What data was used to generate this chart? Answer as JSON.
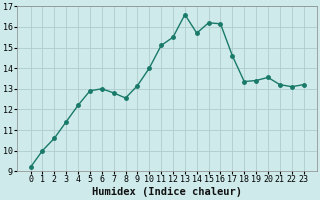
{
  "x": [
    0,
    1,
    2,
    3,
    4,
    5,
    6,
    7,
    8,
    9,
    10,
    11,
    12,
    13,
    14,
    15,
    16,
    17,
    18,
    19,
    20,
    21,
    22,
    23
  ],
  "y": [
    9.2,
    10.0,
    10.6,
    11.4,
    12.2,
    12.9,
    13.0,
    12.8,
    12.55,
    13.15,
    14.0,
    15.1,
    15.5,
    16.6,
    15.7,
    16.2,
    16.15,
    14.6,
    13.35,
    13.4,
    13.55,
    13.2,
    13.1,
    13.2
  ],
  "line_color": "#1a7a6a",
  "marker": "o",
  "markersize": 2.5,
  "linewidth": 1.0,
  "bg_color": "#ceeaea",
  "grid_color": "#b0cccc",
  "xlabel": "Humidex (Indice chaleur)",
  "xlabel_fontsize": 7.5,
  "tick_fontsize": 6,
  "ylim": [
    9,
    17
  ],
  "yticks": [
    9,
    10,
    11,
    12,
    13,
    14,
    15,
    16,
    17
  ],
  "xticks": [
    0,
    1,
    2,
    3,
    4,
    5,
    6,
    7,
    8,
    9,
    10,
    11,
    12,
    13,
    14,
    15,
    16,
    17,
    18,
    19,
    20,
    21,
    22,
    23
  ]
}
